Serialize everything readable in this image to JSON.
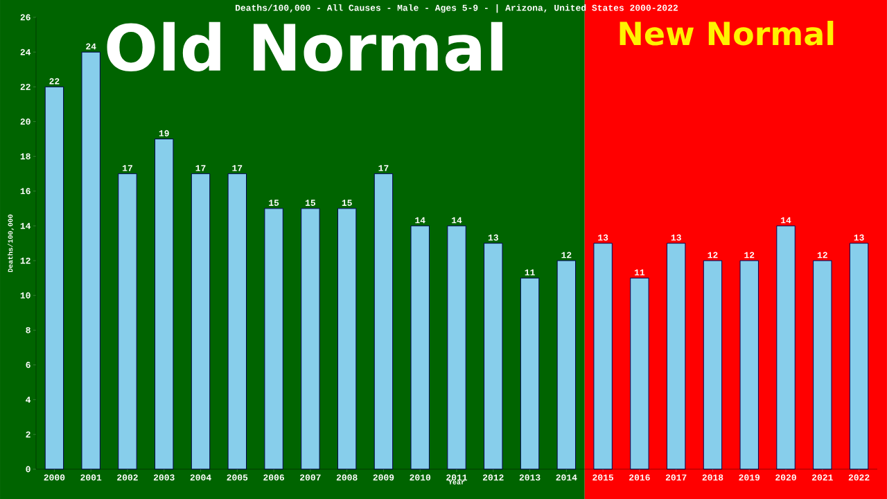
{
  "chart_data": {
    "type": "bar",
    "title": "Deaths/100,000 - All Causes - Male - Ages 5-9 -  | Arizona, United States 2000-2022",
    "xlabel": "Year",
    "ylabel": "Deaths/100,000",
    "categories": [
      "2000",
      "2001",
      "2002",
      "2003",
      "2004",
      "2005",
      "2006",
      "2007",
      "2008",
      "2009",
      "2010",
      "2011",
      "2012",
      "2013",
      "2014",
      "2015",
      "2016",
      "2017",
      "2018",
      "2019",
      "2020",
      "2021",
      "2022"
    ],
    "values": [
      22,
      24,
      17,
      19,
      17,
      17,
      15,
      15,
      15,
      17,
      14,
      14,
      13,
      11,
      12,
      13,
      11,
      13,
      12,
      12,
      14,
      12,
      13
    ],
    "color": "#87ceeb",
    "ylim": [
      0,
      26
    ],
    "yticks": [
      0,
      2,
      4,
      6,
      8,
      10,
      12,
      14,
      16,
      18,
      20,
      22,
      24,
      26
    ],
    "data_labels": true,
    "bands": [
      {
        "axis": "x",
        "from": "2000",
        "to": "2014",
        "label": "Old Normal",
        "color": "#006400"
      },
      {
        "axis": "x",
        "from": "2015",
        "to": "2022",
        "label": "New Normal",
        "color": "#ff0000"
      }
    ]
  }
}
